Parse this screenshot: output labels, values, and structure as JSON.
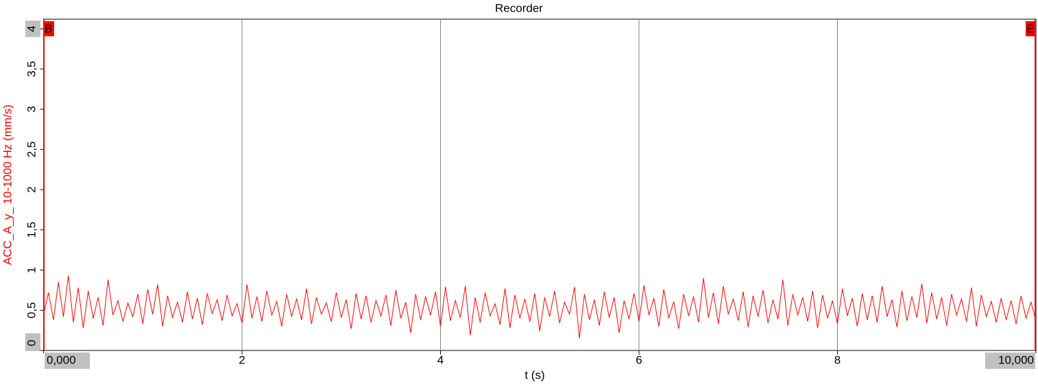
{
  "chart_data": {
    "type": "line",
    "title": "Recorder",
    "x_label": "t (s)",
    "y_label": "ACC_A_y_ 10-1000 Hz (mm/s)",
    "cursor_labels": [
      "B",
      "E"
    ],
    "xlim": [
      0,
      10
    ],
    "ylim": [
      0,
      4.12
    ],
    "grid": true,
    "xticks": [
      {
        "value": 0,
        "label": "0,000"
      },
      2,
      4,
      6,
      8,
      {
        "value": 10,
        "label": "10,000"
      }
    ],
    "yticks": [
      0,
      {
        "value": 0.5,
        "label": "0,5"
      },
      1,
      {
        "value": 1.5,
        "label": "1,5"
      },
      2,
      {
        "value": 2.5,
        "label": "2,5"
      },
      3,
      {
        "value": 3.5,
        "label": "3,5"
      },
      4
    ],
    "x": [
      0,
      0.05,
      0.1,
      0.15,
      0.2,
      0.25,
      0.3,
      0.35,
      0.4,
      0.45,
      0.5,
      0.55,
      0.6,
      0.65,
      0.7,
      0.75,
      0.8,
      0.85,
      0.9,
      0.95,
      1,
      1.05,
      1.1,
      1.15,
      1.2,
      1.25,
      1.3,
      1.35,
      1.4,
      1.45,
      1.5,
      1.55,
      1.6,
      1.65,
      1.7,
      1.75,
      1.8,
      1.85,
      1.9,
      1.95,
      2,
      2.05,
      2.1,
      2.15,
      2.2,
      2.25,
      2.3,
      2.35,
      2.4,
      2.45,
      2.5,
      2.55,
      2.6,
      2.65,
      2.7,
      2.75,
      2.8,
      2.85,
      2.9,
      2.95,
      3,
      3.05,
      3.1,
      3.15,
      3.2,
      3.25,
      3.3,
      3.35,
      3.4,
      3.45,
      3.5,
      3.55,
      3.6,
      3.65,
      3.7,
      3.75,
      3.8,
      3.85,
      3.9,
      3.95,
      4,
      4.05,
      4.1,
      4.15,
      4.2,
      4.25,
      4.3,
      4.35,
      4.4,
      4.45,
      4.5,
      4.55,
      4.6,
      4.65,
      4.7,
      4.75,
      4.8,
      4.85,
      4.9,
      4.95,
      5,
      5.05,
      5.1,
      5.15,
      5.2,
      5.25,
      5.3,
      5.35,
      5.4,
      5.45,
      5.5,
      5.55,
      5.6,
      5.65,
      5.7,
      5.75,
      5.8,
      5.85,
      5.9,
      5.95,
      6,
      6.05,
      6.1,
      6.15,
      6.2,
      6.25,
      6.3,
      6.35,
      6.4,
      6.45,
      6.5,
      6.55,
      6.6,
      6.65,
      6.7,
      6.75,
      6.8,
      6.85,
      6.9,
      6.95,
      7,
      7.05,
      7.1,
      7.15,
      7.2,
      7.25,
      7.3,
      7.35,
      7.4,
      7.45,
      7.5,
      7.55,
      7.6,
      7.65,
      7.7,
      7.75,
      7.8,
      7.85,
      7.9,
      7.95,
      8,
      8.05,
      8.1,
      8.15,
      8.2,
      8.25,
      8.3,
      8.35,
      8.4,
      8.45,
      8.5,
      8.55,
      8.6,
      8.65,
      8.7,
      8.75,
      8.8,
      8.85,
      8.9,
      8.95,
      9,
      9.05,
      9.1,
      9.15,
      9.2,
      9.25,
      9.3,
      9.35,
      9.4,
      9.45,
      9.5,
      9.55,
      9.6,
      9.65,
      9.7,
      9.75,
      9.8,
      9.85,
      9.9,
      9.95,
      10
    ],
    "series": [
      {
        "color": "#ff0000",
        "values": [
          0.45,
          0.72,
          0.38,
          0.85,
          0.42,
          0.93,
          0.35,
          0.78,
          0.28,
          0.74,
          0.4,
          0.66,
          0.31,
          0.88,
          0.44,
          0.62,
          0.36,
          0.59,
          0.42,
          0.7,
          0.33,
          0.76,
          0.45,
          0.82,
          0.3,
          0.68,
          0.41,
          0.6,
          0.35,
          0.73,
          0.39,
          0.65,
          0.32,
          0.71,
          0.46,
          0.63,
          0.37,
          0.69,
          0.43,
          0.58,
          0.34,
          0.82,
          0.4,
          0.67,
          0.36,
          0.74,
          0.44,
          0.61,
          0.3,
          0.7,
          0.42,
          0.64,
          0.38,
          0.77,
          0.33,
          0.66,
          0.45,
          0.59,
          0.36,
          0.72,
          0.41,
          0.63,
          0.27,
          0.71,
          0.39,
          0.68,
          0.35,
          0.62,
          0.43,
          0.69,
          0.31,
          0.75,
          0.4,
          0.6,
          0.22,
          0.7,
          0.38,
          0.67,
          0.44,
          0.73,
          0.3,
          0.79,
          0.37,
          0.62,
          0.41,
          0.8,
          0.19,
          0.66,
          0.35,
          0.72,
          0.43,
          0.58,
          0.32,
          0.77,
          0.28,
          0.69,
          0.4,
          0.64,
          0.36,
          0.71,
          0.24,
          0.66,
          0.42,
          0.74,
          0.34,
          0.6,
          0.45,
          0.79,
          0.15,
          0.7,
          0.38,
          0.63,
          0.31,
          0.73,
          0.41,
          0.66,
          0.22,
          0.62,
          0.39,
          0.71,
          0.36,
          0.81,
          0.44,
          0.65,
          0.3,
          0.76,
          0.4,
          0.61,
          0.27,
          0.7,
          0.43,
          0.67,
          0.35,
          0.9,
          0.41,
          0.72,
          0.33,
          0.8,
          0.45,
          0.64,
          0.37,
          0.73,
          0.29,
          0.68,
          0.42,
          0.75,
          0.34,
          0.63,
          0.39,
          0.88,
          0.31,
          0.7,
          0.44,
          0.66,
          0.36,
          0.74,
          0.28,
          0.69,
          0.4,
          0.62,
          0.33,
          0.77,
          0.43,
          0.65,
          0.3,
          0.71,
          0.38,
          0.68,
          0.35,
          0.8,
          0.42,
          0.63,
          0.29,
          0.74,
          0.37,
          0.67,
          0.41,
          0.83,
          0.34,
          0.72,
          0.39,
          0.66,
          0.31,
          0.7,
          0.44,
          0.64,
          0.36,
          0.78,
          0.3,
          0.69,
          0.42,
          0.61,
          0.35,
          0.65,
          0.38,
          0.62,
          0.33,
          0.68,
          0.4,
          0.6,
          0.37
        ]
      }
    ]
  }
}
